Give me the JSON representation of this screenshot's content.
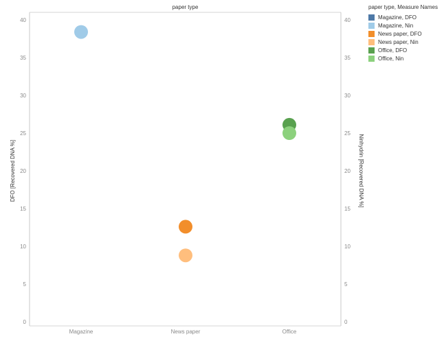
{
  "chart_data": {
    "type": "scatter",
    "header": "paper type",
    "categories": [
      "Magazine",
      "News paper",
      "Office"
    ],
    "series": [
      {
        "name": "Magazine, Nin",
        "axis": "right",
        "color": "#a0cbe8",
        "x": "Magazine",
        "y": 38.4
      },
      {
        "name": "News paper, DFO",
        "axis": "left",
        "color": "#f28e2b",
        "x": "News paper",
        "y": 12.6
      },
      {
        "name": "News paper, Nin",
        "axis": "right",
        "color": "#ffbe7d",
        "x": "News paper",
        "y": 8.8
      },
      {
        "name": "Office, DFO",
        "axis": "left",
        "color": "#59a14f",
        "x": "Office",
        "y": 26.1
      },
      {
        "name": "Office, Nin",
        "axis": "right",
        "color": "#8cd17d",
        "x": "Office",
        "y": 25.0
      }
    ],
    "y_left": {
      "label": "DFO [Recovered DNA %]",
      "ylim": [
        0,
        40
      ],
      "ticks": [
        0,
        5,
        10,
        15,
        20,
        25,
        30,
        35,
        40
      ]
    },
    "y_right": {
      "label": "Ninhydrin [Recovered DNA %]",
      "ylim": [
        0,
        40
      ],
      "ticks": [
        0,
        5,
        10,
        15,
        20,
        25,
        30,
        35,
        40
      ]
    },
    "grid": false,
    "legend": {
      "title": "paper type, Measure Names",
      "position": "right",
      "items": [
        {
          "label": "Magazine, DFO",
          "color": "#4e79a7"
        },
        {
          "label": "Magazine, Nin",
          "color": "#a0cbe8"
        },
        {
          "label": "News paper, DFO",
          "color": "#f28e2b"
        },
        {
          "label": "News paper, Nin",
          "color": "#ffbe7d"
        },
        {
          "label": "Office, DFO",
          "color": "#59a14f"
        },
        {
          "label": "Office, Nin",
          "color": "#8cd17d"
        }
      ]
    }
  }
}
